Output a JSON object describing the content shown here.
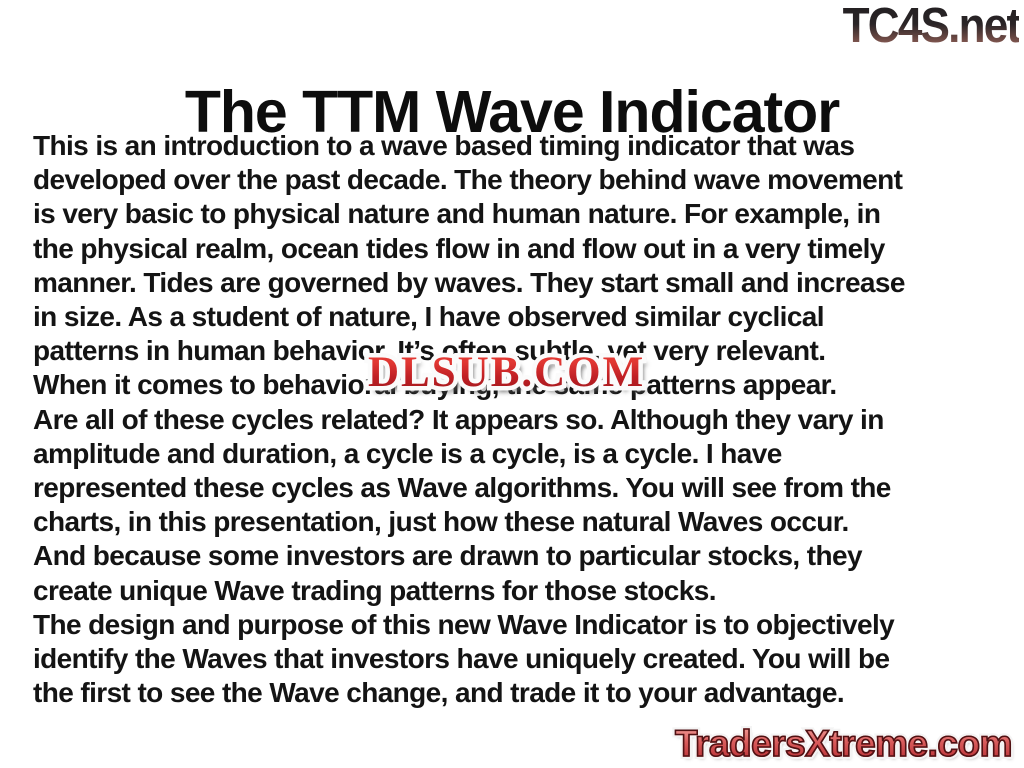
{
  "page": {
    "background_color": "#ffffff"
  },
  "header": {
    "site_logo": {
      "text": "TC4S.net",
      "gradient_top": "#242022",
      "gradient_bottom": "#9c6a62"
    }
  },
  "slide": {
    "title": "The TTM Wave Indicator",
    "body_lines": [
      "This is an introduction to a wave based timing indicator that was",
      "developed over the past decade. The theory behind wave movement",
      "is very basic to physical nature and human nature. For example, in",
      "the physical realm, ocean tides flow in and flow out in a very timely",
      "manner. Tides are governed by waves. They start small and increase",
      "in size. As a student of nature, I have observed similar cyclical",
      "patterns in human behavior. It’s often subtle, yet very relevant.",
      "When it comes to behavioral buying, the same patterns appear.",
      "Are all of these cycles related? It appears so. Although they vary in",
      "amplitude and duration, a cycle is a cycle, is a cycle. I have",
      "represented these cycles as Wave algorithms. You will see from the",
      "charts, in this presentation, just how these natural Waves occur.",
      "And because some investors are drawn to particular stocks, they",
      "create unique Wave trading patterns for those stocks.",
      "The design and purpose of this new Wave Indicator is to objectively",
      "identify the Waves that investors have uniquely created. You will be",
      "the first to see the Wave change, and trade it to your advantage."
    ]
  },
  "watermark": {
    "text": "DLSUB.COM",
    "fill_color": "#c02025",
    "outline_color": "#ffffff",
    "shadow_color": "#5a5a5a"
  },
  "footer": {
    "site_logo": {
      "text": "TradersXtreme.com",
      "gradient_top": "#ec8d8a",
      "gradient_bottom": "#bf393d",
      "outline_color": "#4f1113",
      "glow_color": "#ffffff"
    }
  }
}
